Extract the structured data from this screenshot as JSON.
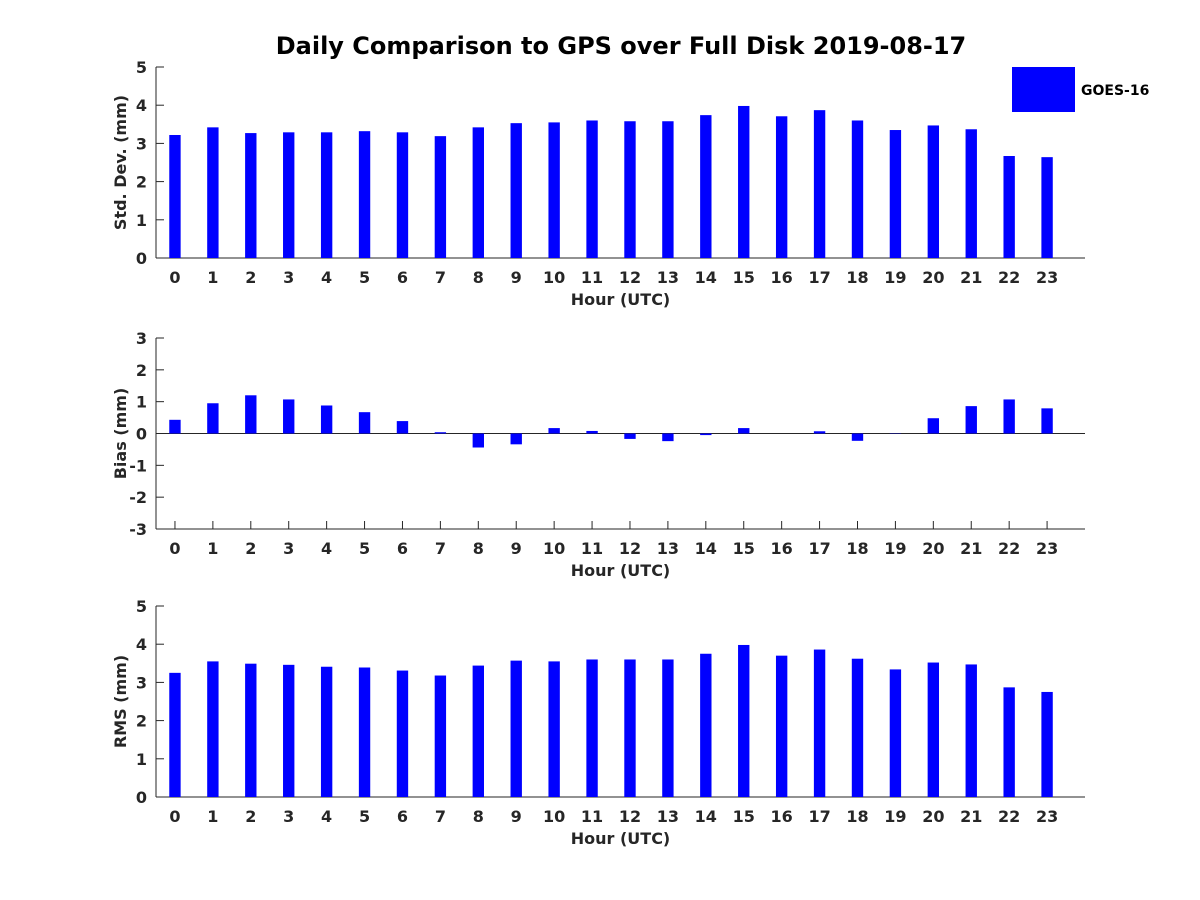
{
  "chart_data": {
    "title": "Daily Comparison to GPS over Full Disk 2019-08-17",
    "legend": {
      "label": "GOES-16",
      "color": "#0000ff",
      "placement": "top-right"
    },
    "bar_color": "#0000ff",
    "categories": [
      "0",
      "1",
      "2",
      "3",
      "4",
      "5",
      "6",
      "7",
      "8",
      "9",
      "10",
      "11",
      "12",
      "13",
      "14",
      "15",
      "16",
      "17",
      "18",
      "19",
      "20",
      "21",
      "22",
      "23"
    ],
    "panels": [
      {
        "type": "bar",
        "name": "std-dev",
        "xlabel": "Hour (UTC)",
        "ylabel": "Std. Dev. (mm)",
        "ylim": [
          0,
          5
        ],
        "yticks": [
          "0",
          "1",
          "2",
          "3",
          "4",
          "5"
        ],
        "values": [
          3.22,
          3.42,
          3.27,
          3.29,
          3.29,
          3.32,
          3.29,
          3.19,
          3.42,
          3.53,
          3.55,
          3.6,
          3.58,
          3.58,
          3.74,
          3.98,
          3.71,
          3.87,
          3.6,
          3.35,
          3.47,
          3.37,
          2.67,
          2.64
        ]
      },
      {
        "type": "bar",
        "name": "bias",
        "xlabel": "Hour (UTC)",
        "ylabel": "Bias (mm)",
        "ylim": [
          -3,
          3
        ],
        "yticks": [
          "-3",
          "-2",
          "-1",
          "0",
          "1",
          "2",
          "3"
        ],
        "values": [
          0.43,
          0.95,
          1.2,
          1.07,
          0.88,
          0.67,
          0.39,
          0.04,
          -0.44,
          -0.34,
          0.17,
          0.08,
          -0.17,
          -0.24,
          -0.05,
          0.17,
          0.0,
          0.07,
          -0.23,
          -0.01,
          0.48,
          0.86,
          1.07,
          0.79
        ]
      },
      {
        "type": "bar",
        "name": "rms",
        "xlabel": "Hour (UTC)",
        "ylabel": "RMS (mm)",
        "ylim": [
          0,
          5
        ],
        "yticks": [
          "0",
          "1",
          "2",
          "3",
          "4",
          "5"
        ],
        "values": [
          3.25,
          3.55,
          3.49,
          3.46,
          3.41,
          3.39,
          3.31,
          3.18,
          3.44,
          3.57,
          3.55,
          3.6,
          3.6,
          3.6,
          3.75,
          3.98,
          3.7,
          3.86,
          3.62,
          3.34,
          3.52,
          3.47,
          2.87,
          2.75
        ]
      }
    ]
  }
}
